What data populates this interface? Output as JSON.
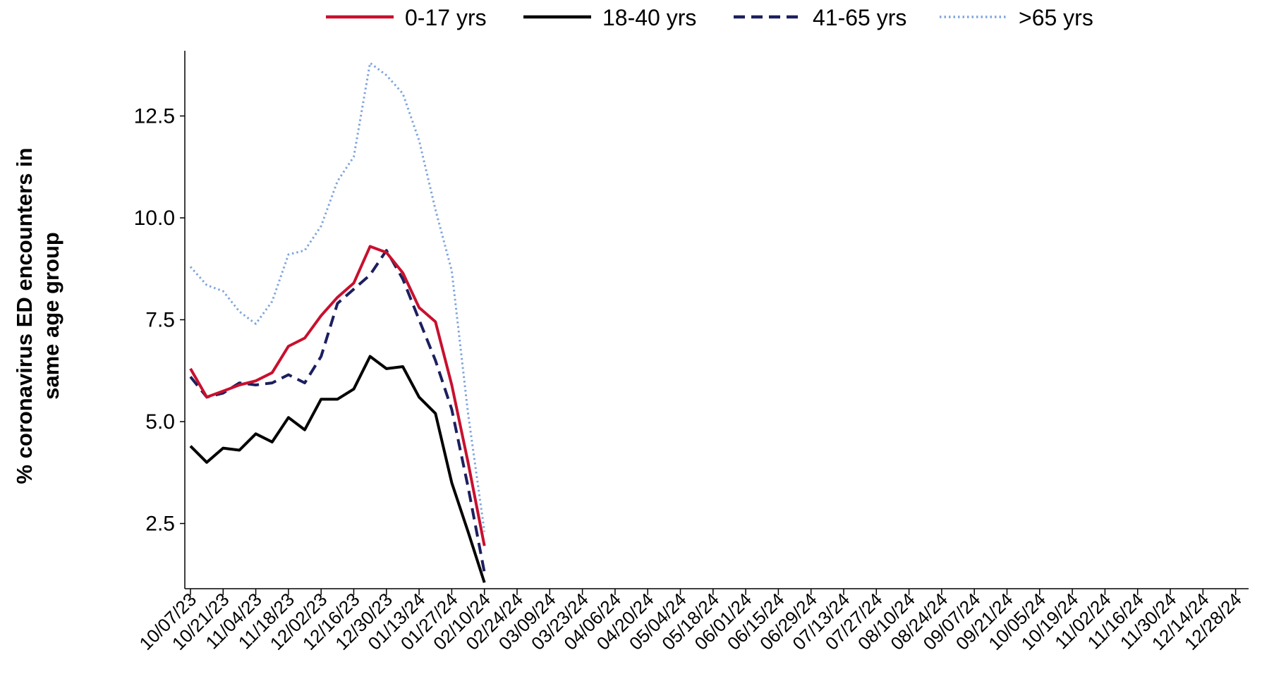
{
  "chart_data": {
    "type": "line",
    "ylabel_lines": [
      "% coronavirus ED encounters in",
      "same age group"
    ],
    "xlabel": "",
    "ylim": [
      0.9,
      14.1
    ],
    "yticks": [
      "2.5",
      "5.0",
      "7.5",
      "10.0",
      "12.5"
    ],
    "ytick_values": [
      2.5,
      5.0,
      7.5,
      10.0,
      12.5
    ],
    "x_tick_labels": [
      "10/07/23",
      "10/21/23",
      "11/04/23",
      "11/18/23",
      "12/02/23",
      "12/16/23",
      "12/30/23",
      "01/13/24",
      "01/27/24",
      "02/10/24",
      "02/24/24",
      "03/09/24",
      "03/23/24",
      "04/06/24",
      "04/20/24",
      "05/04/24",
      "05/18/24",
      "06/01/24",
      "06/15/24",
      "06/29/24",
      "07/13/24",
      "07/27/24",
      "08/10/24",
      "08/24/24",
      "09/07/24",
      "09/21/24",
      "10/05/24",
      "10/19/24",
      "11/02/24",
      "11/16/24",
      "11/30/24",
      "12/14/24",
      "12/28/24"
    ],
    "x_weeks": [
      "10/07/23",
      "10/14/23",
      "10/21/23",
      "10/28/23",
      "11/04/23",
      "11/11/23",
      "11/18/23",
      "11/25/23",
      "12/02/23",
      "12/09/23",
      "12/16/23",
      "12/23/23",
      "12/30/23",
      "01/06/24",
      "01/13/24",
      "01/20/24",
      "01/27/24",
      "02/03/24",
      "02/10/24"
    ],
    "legend_position": "top",
    "grid": false,
    "series": [
      {
        "name": "0-17 yrs",
        "color": "#c8102e",
        "style": "solid",
        "values": [
          6.3,
          5.6,
          5.75,
          5.9,
          6.0,
          6.2,
          6.85,
          7.05,
          7.6,
          8.05,
          8.4,
          9.3,
          9.15,
          8.65,
          7.8,
          7.45,
          5.9,
          4.0,
          1.95
        ]
      },
      {
        "name": "18-40 yrs",
        "color": "#000000",
        "style": "solid",
        "values": [
          4.4,
          4.0,
          4.35,
          4.3,
          4.7,
          4.5,
          5.1,
          4.8,
          5.55,
          5.55,
          5.8,
          6.6,
          6.3,
          6.35,
          5.6,
          5.2,
          3.5,
          2.3,
          1.05
        ]
      },
      {
        "name": "41-65 yrs",
        "color": "#1c1f5e",
        "style": "dashed",
        "values": [
          6.1,
          5.6,
          5.7,
          5.95,
          5.9,
          5.95,
          6.15,
          5.95,
          6.6,
          7.9,
          8.25,
          8.6,
          9.2,
          8.5,
          7.5,
          6.5,
          5.3,
          3.4,
          1.3
        ]
      },
      {
        "name": ">65 yrs",
        "color": "#7fa5dc",
        "style": "dotted",
        "values": [
          8.8,
          8.35,
          8.2,
          7.7,
          7.4,
          7.95,
          9.1,
          9.2,
          9.8,
          10.9,
          11.5,
          13.8,
          13.5,
          13.05,
          11.9,
          10.2,
          8.7,
          5.2,
          2.3
        ]
      }
    ]
  }
}
